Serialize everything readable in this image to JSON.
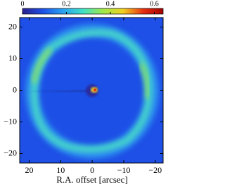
{
  "chart_data": {
    "type": "image",
    "xlabel": "R.A. offset [arcsec]",
    "xlim": [
      23,
      -22.5
    ],
    "xticks": [
      20,
      10,
      0,
      {
        "value": -10,
        "label": "−10"
      },
      {
        "value": -20,
        "label": "−20"
      }
    ],
    "ylim": [
      -23,
      23
    ],
    "yticks": [
      20,
      10,
      0,
      {
        "value": -10,
        "label": "−10"
      },
      {
        "value": -20,
        "label": "−20"
      }
    ],
    "clim": [
      0,
      0.64
    ],
    "cticks": [
      0,
      0.2,
      0.4,
      0.6
    ],
    "colormap": [
      "#2a1f8c",
      "#1e4fe6",
      "#2aa0f0",
      "#3ee0c8",
      "#9ee84a",
      "#f0d020",
      "#e83010",
      "#a00000"
    ]
  }
}
